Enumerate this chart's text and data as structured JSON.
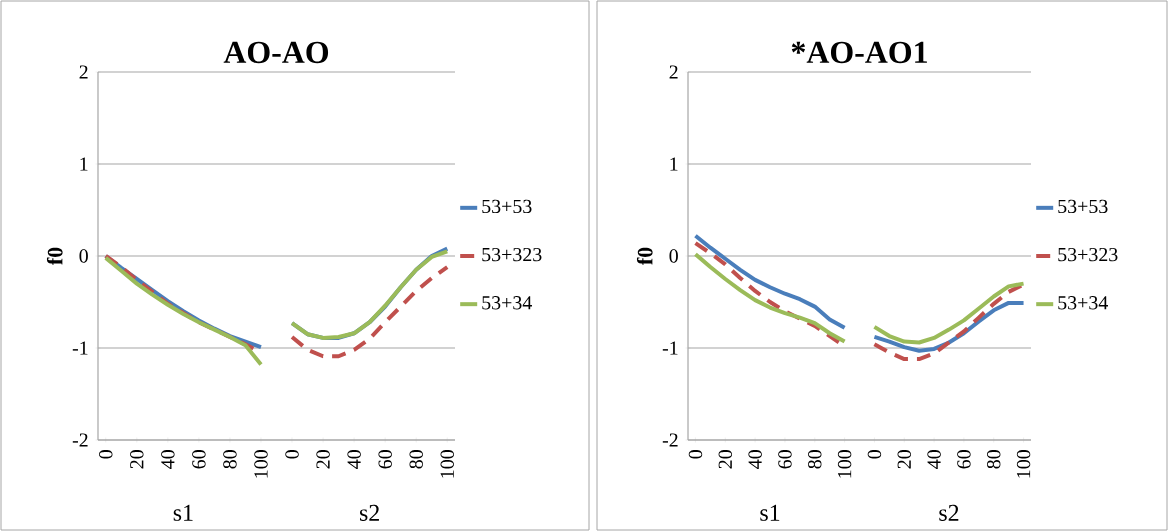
{
  "chart_data": [
    {
      "type": "line",
      "title": "AO-AO",
      "ylabel": "f0",
      "annotations": [
        "s1",
        "s2"
      ],
      "categories": [
        "0",
        null,
        "20",
        null,
        "40",
        null,
        "60",
        null,
        "80",
        null,
        "100",
        null,
        "0",
        null,
        "20",
        null,
        "40",
        null,
        "60",
        null,
        "80",
        null,
        "100"
      ],
      "ylim": [
        -2,
        2
      ],
      "yticks": [
        -2,
        -1,
        0,
        1,
        2
      ],
      "grid": "y",
      "legend": "right",
      "marker": "none",
      "series": [
        {
          "name": "53+53",
          "color": "#4a7ebb",
          "line_style": "solid",
          "values": [
            0,
            -0.13,
            -0.25,
            -0.37,
            -0.49,
            -0.6,
            -0.7,
            -0.79,
            -0.87,
            -0.93,
            -0.99,
            null,
            -0.73,
            -0.85,
            -0.89,
            -0.89,
            -0.84,
            -0.72,
            -0.55,
            -0.34,
            -0.15,
            0.0,
            0.08
          ]
        },
        {
          "name": "53+323",
          "color": "#c0504d",
          "line_style": "dashed",
          "values": [
            0,
            -0.12,
            -0.26,
            -0.39,
            -0.52,
            -0.62,
            -0.72,
            -0.8,
            -0.88,
            -0.96,
            -1.05,
            null,
            -0.88,
            -1.02,
            -1.09,
            -1.09,
            -1.02,
            -0.9,
            -0.72,
            -0.55,
            -0.38,
            -0.24,
            -0.12
          ]
        },
        {
          "name": "53+34",
          "color": "#9bbb59",
          "line_style": "solid",
          "values": [
            -0.02,
            -0.16,
            -0.3,
            -0.42,
            -0.53,
            -0.63,
            -0.72,
            -0.8,
            -0.88,
            -0.97,
            -1.18,
            null,
            -0.73,
            -0.85,
            -0.89,
            -0.88,
            -0.84,
            -0.72,
            -0.54,
            -0.34,
            -0.15,
            -0.01,
            0.05
          ]
        }
      ]
    },
    {
      "type": "line",
      "title": "*AO-AO1",
      "ylabel": "f0",
      "annotations": [
        "s1",
        "s2"
      ],
      "categories": [
        "0",
        null,
        "20",
        null,
        "40",
        null,
        "60",
        null,
        "80",
        null,
        "100",
        null,
        "0",
        null,
        "20",
        null,
        "40",
        null,
        "60",
        null,
        "80",
        null,
        "100"
      ],
      "ylim": [
        -2,
        2
      ],
      "yticks": [
        -2,
        -1,
        0,
        1,
        2
      ],
      "grid": "y",
      "legend": "right",
      "marker": "none",
      "series": [
        {
          "name": "53+53",
          "color": "#4a7ebb",
          "line_style": "solid",
          "values": [
            0.22,
            0.09,
            -0.03,
            -0.15,
            -0.26,
            -0.34,
            -0.41,
            -0.47,
            -0.55,
            -0.69,
            -0.78,
            null,
            -0.88,
            -0.93,
            -0.99,
            -1.03,
            -1.01,
            -0.94,
            -0.84,
            -0.71,
            -0.59,
            -0.51,
            -0.51
          ]
        },
        {
          "name": "53+323",
          "color": "#c0504d",
          "line_style": "dashed",
          "values": [
            0.14,
            0.03,
            -0.09,
            -0.24,
            -0.38,
            -0.5,
            -0.6,
            -0.68,
            -0.76,
            -0.87,
            -0.98,
            null,
            -0.96,
            -1.05,
            -1.12,
            -1.12,
            -1.06,
            -0.94,
            -0.82,
            -0.67,
            -0.52,
            -0.39,
            -0.31
          ]
        },
        {
          "name": "53+34",
          "color": "#9bbb59",
          "line_style": "solid",
          "values": [
            0.02,
            -0.12,
            -0.25,
            -0.37,
            -0.48,
            -0.56,
            -0.62,
            -0.67,
            -0.73,
            -0.84,
            -0.93,
            null,
            -0.77,
            -0.87,
            -0.93,
            -0.94,
            -0.89,
            -0.8,
            -0.7,
            -0.57,
            -0.44,
            -0.33,
            -0.3
          ]
        }
      ]
    }
  ]
}
